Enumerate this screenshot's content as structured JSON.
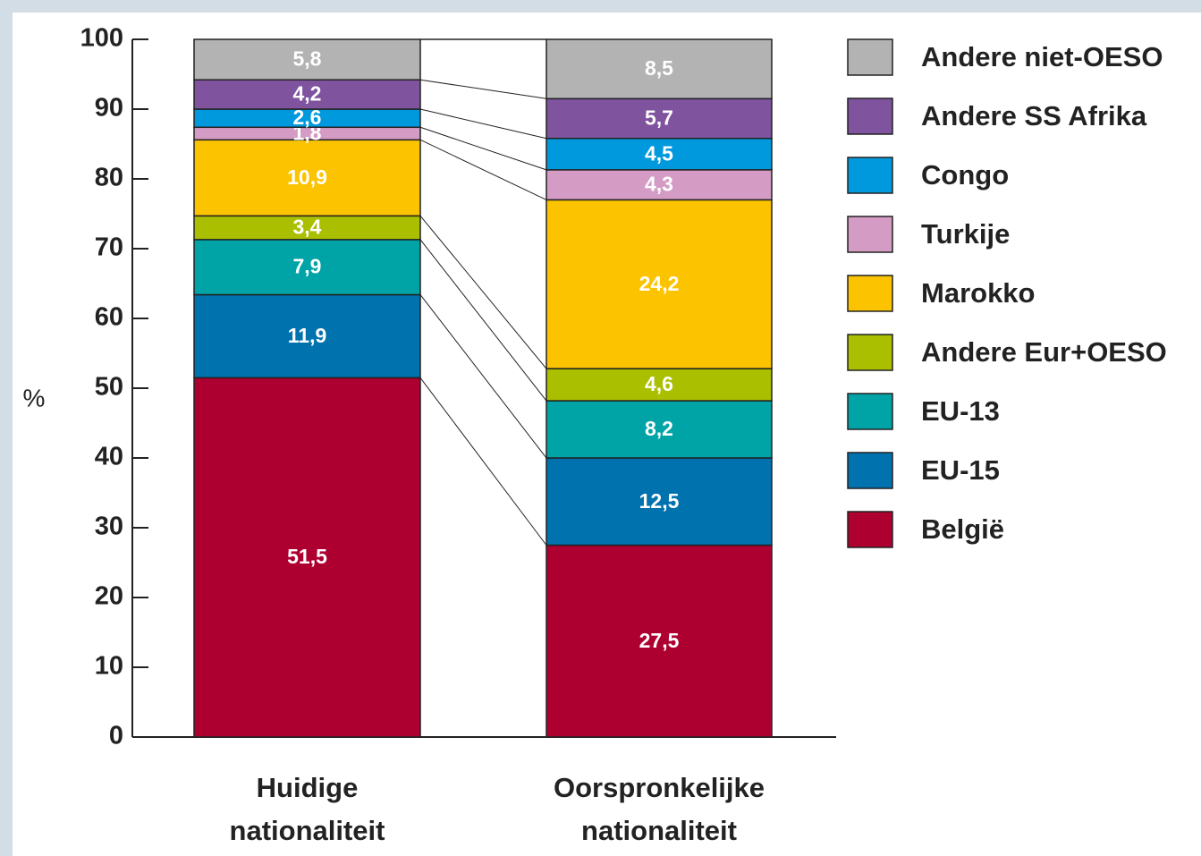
{
  "chart_data": {
    "type": "stacked-bar",
    "categories": [
      "Huidige nationaliteit",
      "Oorspronkelijke nationaliteit"
    ],
    "ylabel": "%",
    "ylim": [
      0,
      100
    ],
    "yticks": [
      0,
      10,
      20,
      30,
      40,
      50,
      60,
      70,
      80,
      90,
      100
    ],
    "series": [
      {
        "name": "België",
        "color": "#ad0030",
        "values": [
          51.5,
          27.5
        ],
        "value_labels": [
          "51,5",
          "27,5"
        ]
      },
      {
        "name": "EU-15",
        "color": "#0072ae",
        "values": [
          11.9,
          12.5
        ],
        "value_labels": [
          "11,9",
          "12,5"
        ]
      },
      {
        "name": "EU-13",
        "color": "#00a3a6",
        "values": [
          7.9,
          8.2
        ],
        "value_labels": [
          "7,9",
          "8,2"
        ]
      },
      {
        "name": "Andere Eur+OESO",
        "color": "#a9bf00",
        "values": [
          3.4,
          4.6
        ],
        "value_labels": [
          "3,4",
          "4,6"
        ]
      },
      {
        "name": "Marokko",
        "color": "#fcc300",
        "values": [
          10.9,
          24.2
        ],
        "value_labels": [
          "10,9",
          "24,2"
        ]
      },
      {
        "name": "Turkije",
        "color": "#d49bc4",
        "values": [
          1.8,
          4.3
        ],
        "value_labels": [
          "1,8",
          "4,3"
        ]
      },
      {
        "name": "Congo",
        "color": "#0099dd",
        "values": [
          2.6,
          4.5
        ],
        "value_labels": [
          "2,6",
          "4,5"
        ]
      },
      {
        "name": "Andere SS Afrika",
        "color": "#7f539e",
        "values": [
          4.2,
          5.7
        ],
        "value_labels": [
          "4,2",
          "5,7"
        ]
      },
      {
        "name": "Andere niet-OESO",
        "color": "#b3b3b3",
        "values": [
          5.8,
          8.5
        ],
        "value_labels": [
          "5,8",
          "8,5"
        ]
      }
    ]
  }
}
